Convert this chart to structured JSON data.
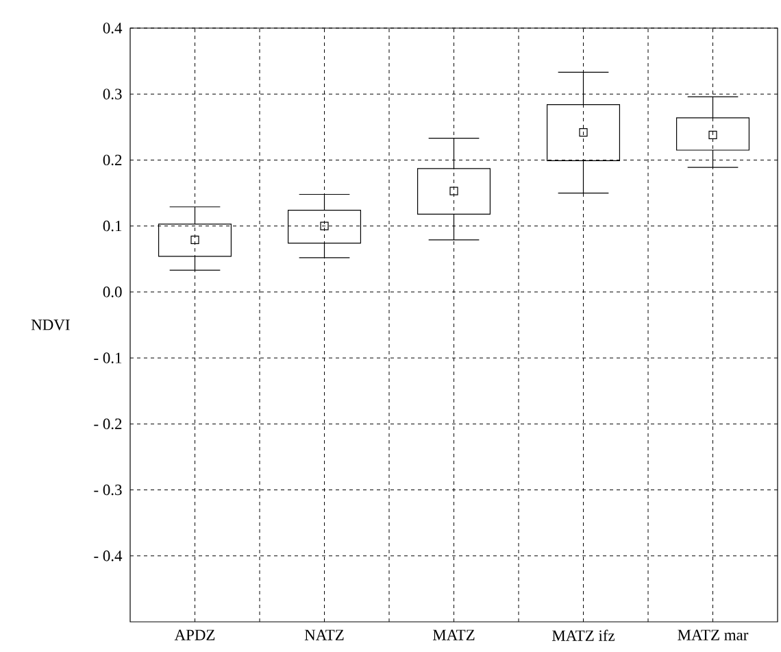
{
  "chart_data": {
    "type": "box",
    "ylabel": "NDVI",
    "categories": [
      "APDZ",
      "NATZ",
      "MATZ",
      "MATZ ifz",
      "MATZ mar"
    ],
    "boxes": [
      {
        "low": 0.033,
        "q1": 0.054,
        "median": 0.079,
        "q3": 0.103,
        "high": 0.129
      },
      {
        "low": 0.052,
        "q1": 0.074,
        "median": 0.1,
        "q3": 0.124,
        "high": 0.148
      },
      {
        "low": 0.079,
        "q1": 0.118,
        "median": 0.153,
        "q3": 0.187,
        "high": 0.233
      },
      {
        "low": 0.15,
        "q1": 0.199,
        "median": 0.242,
        "q3": 0.284,
        "high": 0.333
      },
      {
        "low": 0.189,
        "q1": 0.215,
        "median": 0.238,
        "q3": 0.264,
        "high": 0.296
      }
    ],
    "ylim": [
      -0.5,
      0.4
    ],
    "yticks": [
      {
        "value": -0.4,
        "label": "- 0.4"
      },
      {
        "value": -0.3,
        "label": "- 0.3"
      },
      {
        "value": -0.2,
        "label": "- 0.2"
      },
      {
        "value": -0.1,
        "label": "- 0.1"
      },
      {
        "value": 0,
        "label": "0.0"
      },
      0.1,
      0.2,
      0.3,
      0.4
    ],
    "grid": true,
    "marker": "square"
  }
}
